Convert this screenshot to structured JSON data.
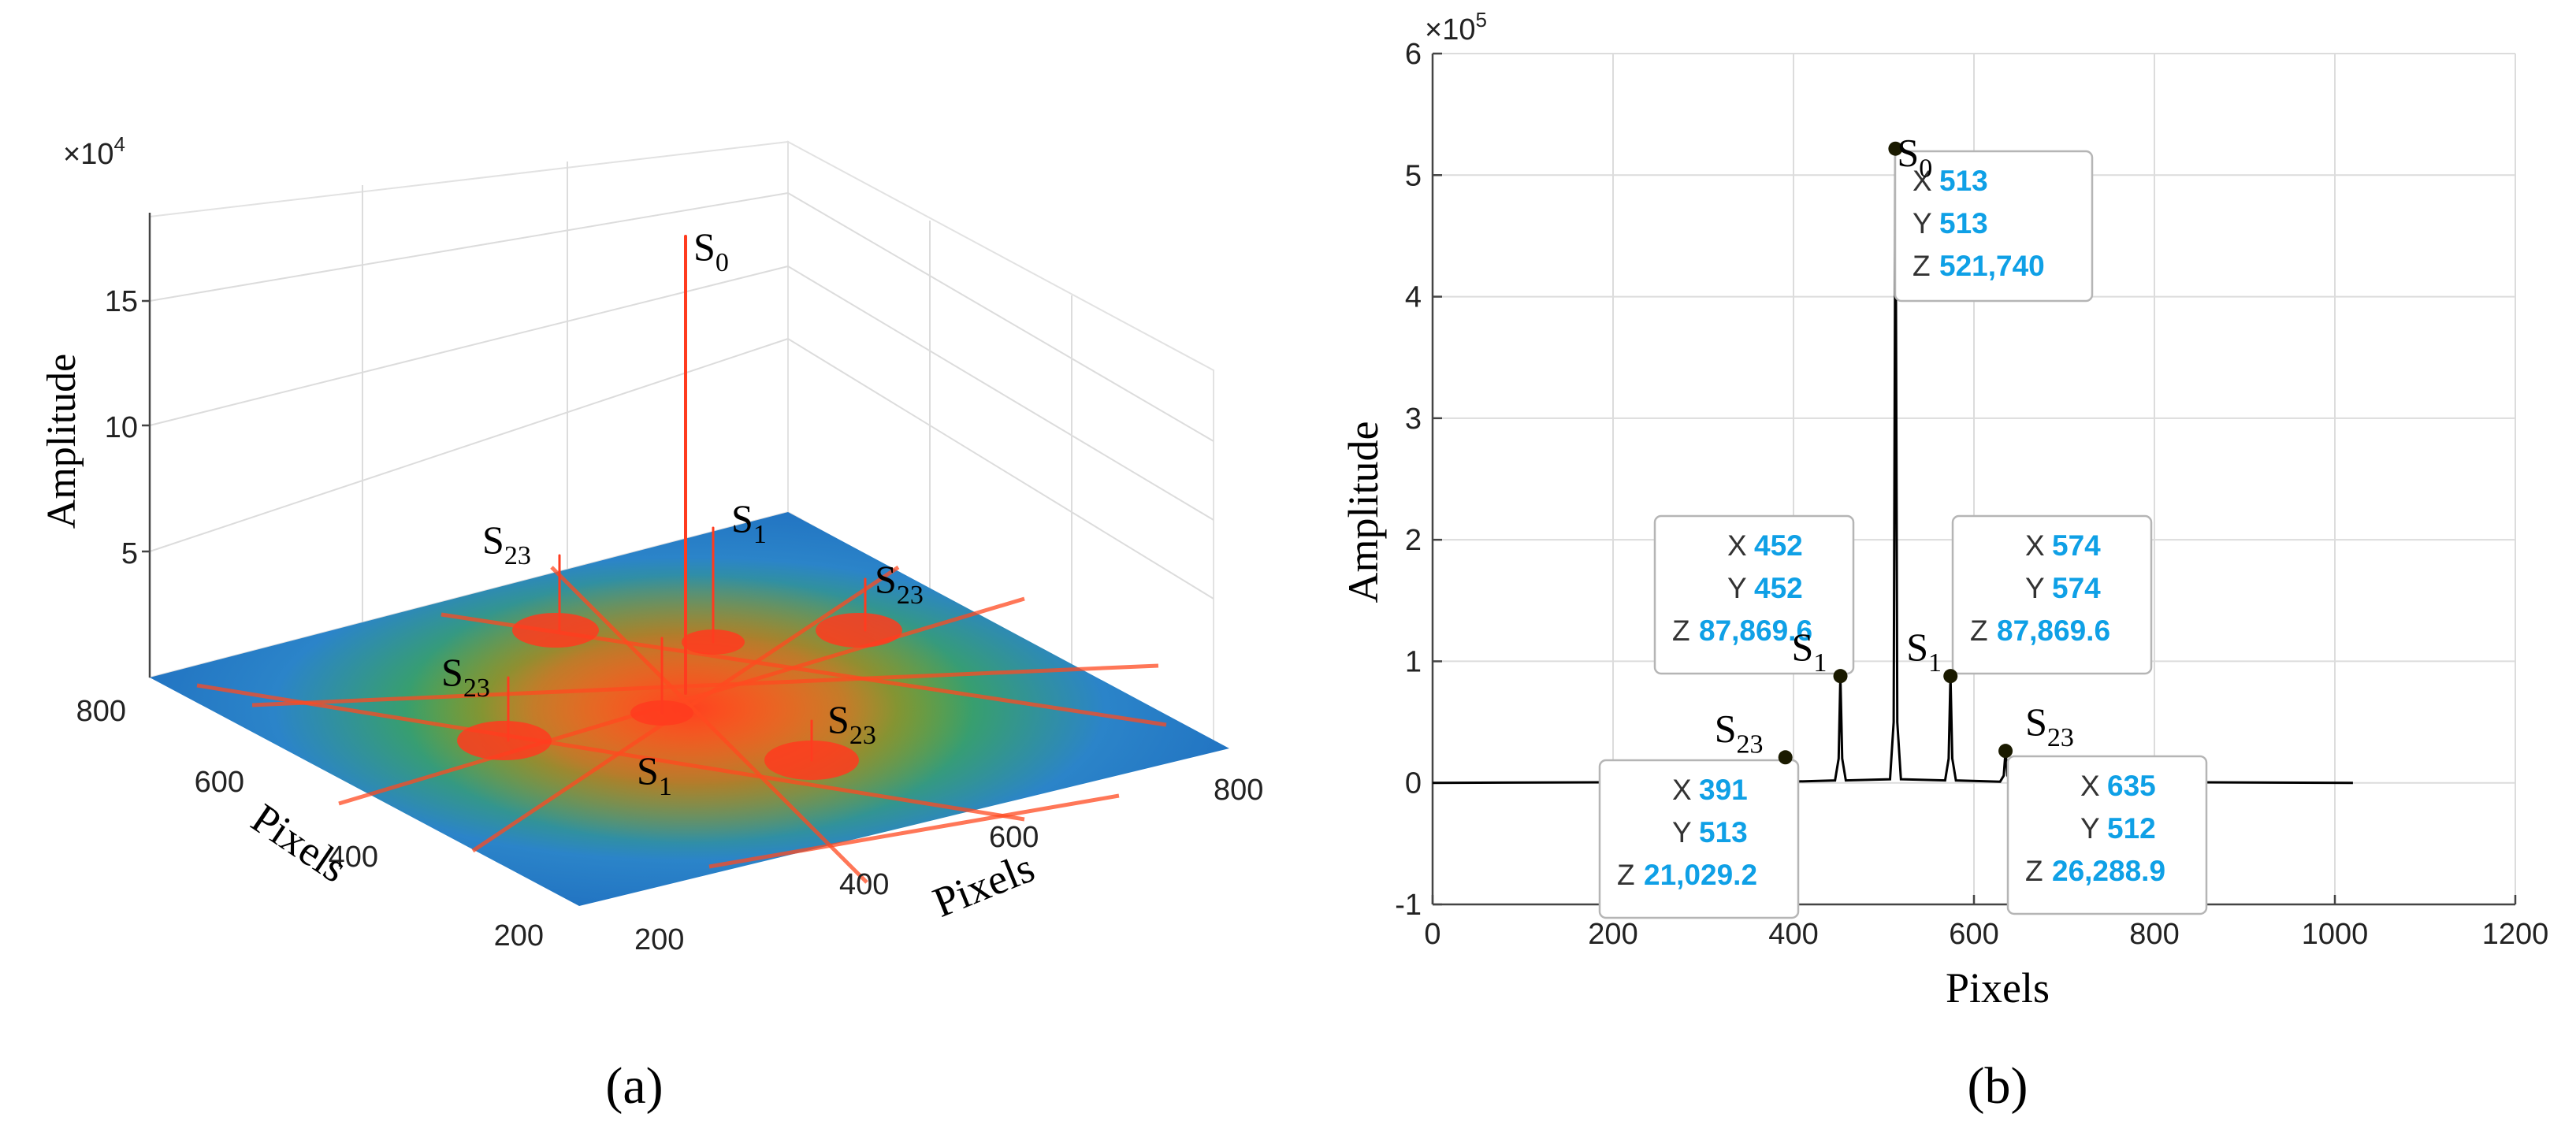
{
  "panel_a": {
    "label": "(a)",
    "multiplier": "×10",
    "multiplier_exp": "4",
    "zlabel": "Amplitude",
    "xlabel": "Pixels",
    "ylabel": "Pixels",
    "z_ticks": [
      "5",
      "10",
      "15"
    ],
    "y_ticks": [
      "200",
      "400",
      "600",
      "800"
    ],
    "x_ticks": [
      "200",
      "400",
      "600",
      "800"
    ],
    "peaks": [
      {
        "base": "S",
        "sub": "0"
      },
      {
        "base": "S",
        "sub": "1"
      },
      {
        "base": "S",
        "sub": "1"
      },
      {
        "base": "S",
        "sub": "23"
      },
      {
        "base": "S",
        "sub": "23"
      },
      {
        "base": "S",
        "sub": "23"
      },
      {
        "base": "S",
        "sub": "23"
      }
    ],
    "colors": {
      "floor": "#1f6fc0",
      "noise": "#3da63c",
      "peak": "#ff3b1f"
    }
  },
  "panel_b": {
    "label": "(b)",
    "multiplier": "×10",
    "multiplier_exp": "5"
  },
  "chart_data": {
    "type": "line",
    "title": "",
    "xlabel": "Pixels",
    "ylabel": "Amplitude",
    "xlim": [
      0,
      1200
    ],
    "ylim": [
      -1,
      6
    ],
    "y_scale": "×10^5",
    "grid": true,
    "x_ticks": [
      "0",
      "200",
      "400",
      "600",
      "800",
      "1000",
      "1200"
    ],
    "y_ticks": [
      "-1",
      "0",
      "1",
      "2",
      "3",
      "4",
      "5",
      "6"
    ],
    "series": [
      {
        "name": "amplitude",
        "color": "#000000",
        "x": [
          0,
          385,
          389,
          391,
          393,
          397,
          446,
          450,
          452,
          454,
          458,
          507,
          511,
          513,
          515,
          519,
          568,
          572,
          574,
          576,
          580,
          629,
          633,
          635,
          637,
          641,
          1020
        ],
        "y": [
          0,
          0.01,
          0.05,
          0.21,
          0.05,
          0.01,
          0.02,
          0.2,
          0.879,
          0.2,
          0.02,
          0.03,
          0.5,
          5.2174,
          0.5,
          0.03,
          0.02,
          0.2,
          0.879,
          0.2,
          0.02,
          0.01,
          0.06,
          0.263,
          0.06,
          0.01,
          0
        ]
      }
    ],
    "datatips": [
      {
        "X": "513",
        "Y": "513",
        "Z": "521,740",
        "x": 513,
        "y": 5.2174,
        "label_base": "S",
        "label_sub": "0"
      },
      {
        "X": "452",
        "Y": "452",
        "Z": "87,869.6",
        "x": 452,
        "y": 0.8787,
        "label_base": "S",
        "label_sub": "1"
      },
      {
        "X": "574",
        "Y": "574",
        "Z": "87,869.6",
        "x": 574,
        "y": 0.8787,
        "label_base": "S",
        "label_sub": "1"
      },
      {
        "X": "391",
        "Y": "513",
        "Z": "21,029.2",
        "x": 391,
        "y": 0.21029,
        "label_base": "S",
        "label_sub": "23"
      },
      {
        "X": "635",
        "Y": "512",
        "Z": "26,288.9",
        "x": 635,
        "y": 0.26289,
        "label_base": "S",
        "label_sub": "23"
      }
    ]
  }
}
